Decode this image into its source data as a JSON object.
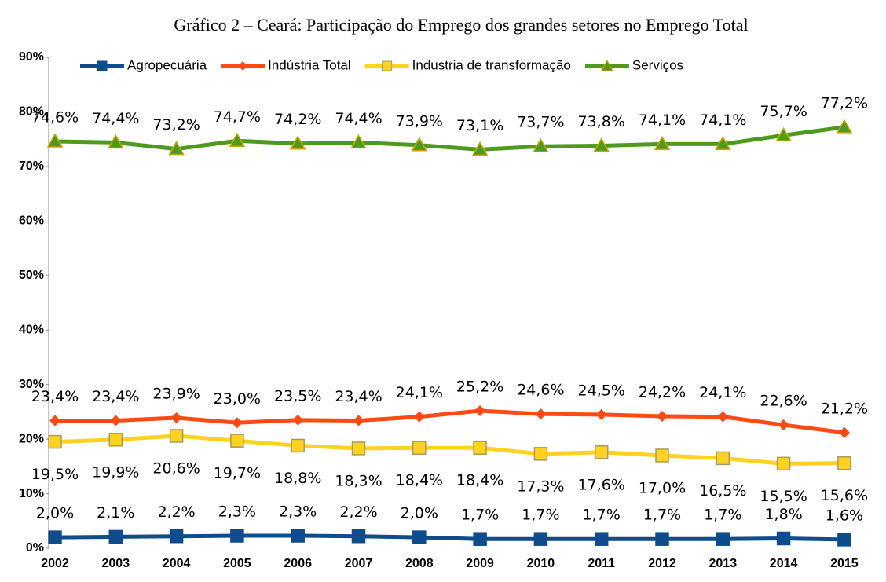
{
  "chart_data": {
    "type": "line",
    "title": "Gráfico 2 – Ceará: Participação do Emprego dos grandes setores no Emprego Total",
    "categories": [
      "2002",
      "2003",
      "2004",
      "2005",
      "2006",
      "2007",
      "2008",
      "2009",
      "2010",
      "2011",
      "2012",
      "2013",
      "2014",
      "2015"
    ],
    "ylim": [
      0,
      90
    ],
    "yticks": [
      {
        "value": 0,
        "label": "0%"
      },
      {
        "value": 10,
        "label": "10%"
      },
      {
        "value": 20,
        "label": "20%"
      },
      {
        "value": 30,
        "label": "30%"
      },
      {
        "value": 40,
        "label": "40%"
      },
      {
        "value": 50,
        "label": "50%"
      },
      {
        "value": 60,
        "label": "60%"
      },
      {
        "value": 70,
        "label": "70%"
      },
      {
        "value": 80,
        "label": "80%"
      },
      {
        "value": 90,
        "label": "90%"
      }
    ],
    "legend": "top",
    "series": [
      {
        "name": "Agropecuária",
        "color": "#0e4c8c",
        "marker": "square",
        "values": [
          2.0,
          2.1,
          2.2,
          2.3,
          2.3,
          2.2,
          2.0,
          1.7,
          1.7,
          1.7,
          1.7,
          1.7,
          1.8,
          1.6
        ],
        "value_labels": [
          "2,0%",
          "2,1%",
          "2,2%",
          "2,3%",
          "2,3%",
          "2,2%",
          "2,0%",
          "1,7%",
          "1,7%",
          "1,7%",
          "1,7%",
          "1,7%",
          "1,8%",
          "1,6%"
        ]
      },
      {
        "name": "Indústria Total",
        "color": "#ff4a14",
        "marker": "diamond",
        "values": [
          23.4,
          23.4,
          23.9,
          23.0,
          23.5,
          23.4,
          24.1,
          25.2,
          24.6,
          24.5,
          24.2,
          24.1,
          22.6,
          21.2
        ],
        "value_labels": [
          "23,4%",
          "23,4%",
          "23,9%",
          "23,0%",
          "23,5%",
          "23,4%",
          "24,1%",
          "25,2%",
          "24,6%",
          "24,5%",
          "24,2%",
          "24,1%",
          "22,6%",
          "21,2%"
        ]
      },
      {
        "name": "Industria de transformação",
        "color": "#ffd21f",
        "marker": "square",
        "values": [
          19.5,
          19.9,
          20.6,
          19.7,
          18.8,
          18.3,
          18.4,
          18.4,
          17.3,
          17.6,
          17.0,
          16.5,
          15.5,
          15.6
        ],
        "value_labels": [
          "19,5%",
          "19,9%",
          "20,6%",
          "19,7%",
          "18,8%",
          "18,3%",
          "18,4%",
          "18,4%",
          "17,3%",
          "17,6%",
          "17,0%",
          "16,5%",
          "15,5%",
          "15,6%"
        ]
      },
      {
        "name": "Serviços",
        "color": "#4e9a1e",
        "marker": "triangle",
        "values": [
          74.6,
          74.4,
          73.2,
          74.7,
          74.2,
          74.4,
          73.9,
          73.1,
          73.7,
          73.8,
          74.1,
          74.1,
          75.7,
          77.2
        ],
        "value_labels": [
          "74,6%",
          "74,4%",
          "73,2%",
          "74,7%",
          "74,2%",
          "74,4%",
          "73,9%",
          "73,1%",
          "73,7%",
          "73,8%",
          "74,1%",
          "74,1%",
          "75,7%",
          "77,2%"
        ]
      }
    ]
  }
}
